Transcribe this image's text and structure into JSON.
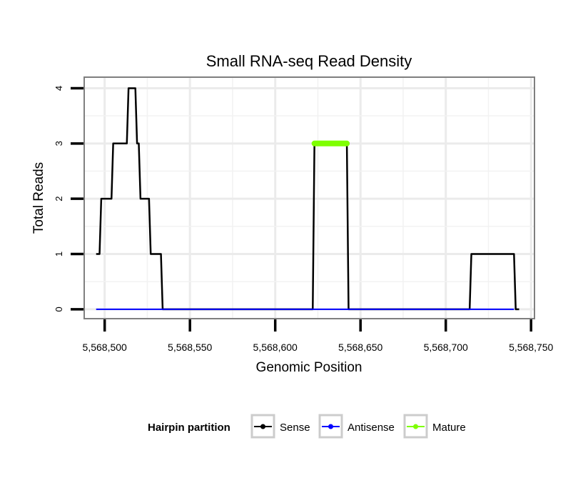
{
  "chart_data": {
    "type": "line",
    "title": "Small RNA-seq Read Density",
    "xlabel": "Genomic Position",
    "ylabel": "Total Reads",
    "xlim": [
      5568488,
      5568752
    ],
    "ylim": [
      -0.17,
      4.2
    ],
    "x_ticks": [
      5568500,
      5568550,
      5568600,
      5568650,
      5568700,
      5568750
    ],
    "x_tick_labels": [
      "5,568,500",
      "5,568,550",
      "5,568,600",
      "5,568,650",
      "5,568,700",
      "5,568,750"
    ],
    "y_ticks": [
      0,
      1,
      2,
      3,
      4
    ],
    "y_tick_labels": [
      "0",
      "1",
      "2",
      "3",
      "4"
    ],
    "grid": true,
    "legend": {
      "title": "Hairpin partition",
      "position": "bottom"
    },
    "series": [
      {
        "name": "Sense",
        "color": "#000000",
        "points": [
          [
            5568495,
            1
          ],
          [
            5568497,
            1
          ],
          [
            5568498,
            2
          ],
          [
            5568504,
            2
          ],
          [
            5568505,
            3
          ],
          [
            5568513,
            3
          ],
          [
            5568514,
            4
          ],
          [
            5568518,
            4
          ],
          [
            5568519,
            3
          ],
          [
            5568520,
            3
          ],
          [
            5568521,
            2
          ],
          [
            5568526,
            2
          ],
          [
            5568527,
            1
          ],
          [
            5568533,
            1
          ],
          [
            5568534,
            0
          ],
          [
            5568622,
            0
          ],
          [
            5568623,
            3
          ],
          [
            5568642,
            3
          ],
          [
            5568643,
            0
          ],
          [
            5568714,
            0
          ],
          [
            5568715,
            1
          ],
          [
            5568740,
            1
          ],
          [
            5568741,
            0
          ],
          [
            5568743,
            0
          ]
        ]
      },
      {
        "name": "Antisense",
        "color": "#0000ff",
        "points": [
          [
            5568495,
            0
          ],
          [
            5568740,
            0
          ]
        ]
      },
      {
        "name": "Mature",
        "color": "#7fff00",
        "points": [
          [
            5568623,
            3
          ],
          [
            5568642,
            3
          ]
        ]
      }
    ]
  }
}
